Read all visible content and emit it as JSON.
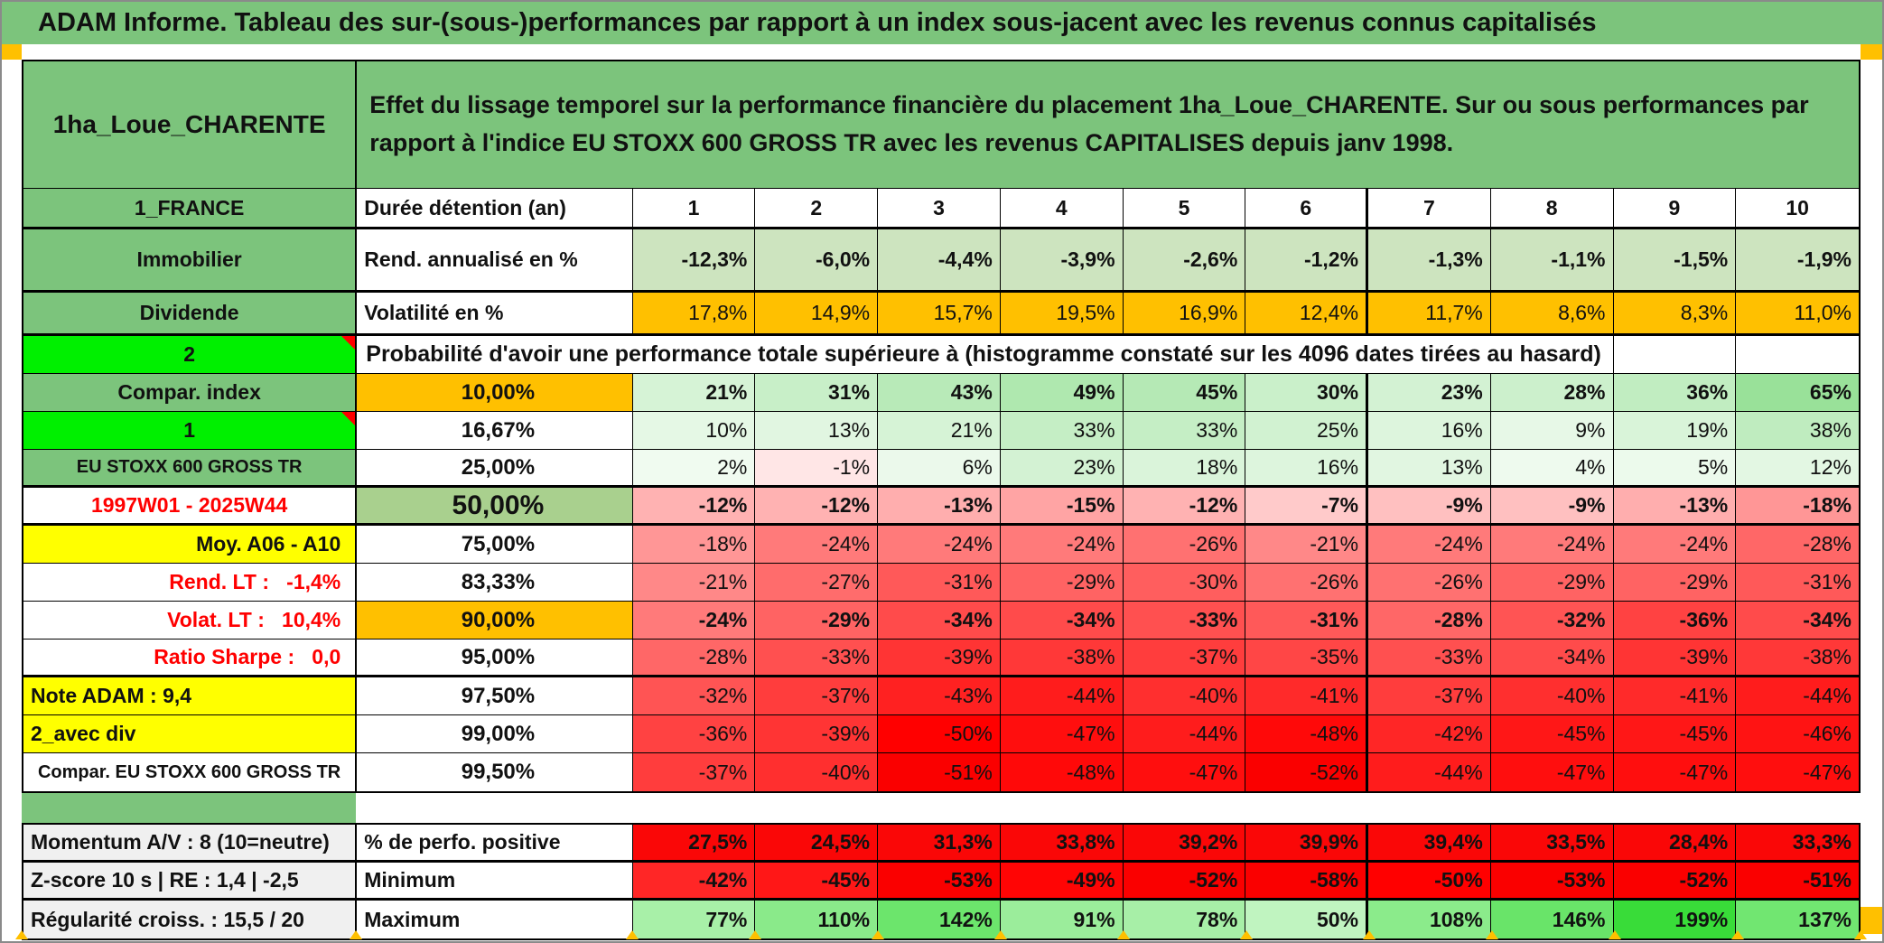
{
  "title": "ADAM Informe. Tableau des sur-(sous-)performances par rapport à un index sous-jacent avec les revenus connus capitalisés",
  "header": {
    "asset_name": "1ha_Loue_CHARENTE",
    "description": "Effet du lissage temporel sur la performance financière du placement 1ha_Loue_CHARENTE. Sur ou sous performances par rapport à l'indice EU STOXX 600 GROSS TR avec les revenus CAPITALISES depuis janv 1998."
  },
  "colors": {
    "green_header": "#7CC47C",
    "bright_green": "#00F000",
    "orange": "#FFC000",
    "yellow": "#FFFF00",
    "olive": "#A9D08E",
    "gray_label": "#F0F0F0",
    "red_text": "#FF0000"
  },
  "table": {
    "duration_header": {
      "label": "1_FRANCE",
      "metric": "Durée détention (an)",
      "values": [
        "1",
        "2",
        "3",
        "4",
        "5",
        "6",
        "7",
        "8",
        "9",
        "10"
      ]
    },
    "stat_rows": [
      {
        "label": "Immobilier",
        "metric": "Rend. annualisé en %",
        "mode": "flat-green",
        "bold": true,
        "row_class": "r-ann thickb",
        "values": [
          "-12,3%",
          "-6,0%",
          "-4,4%",
          "-3,9%",
          "-2,6%",
          "-1,2%",
          "-1,3%",
          "-1,1%",
          "-1,5%",
          "-1,9%"
        ]
      },
      {
        "label": "Dividende",
        "metric": "Volatilité en %",
        "mode": "flat-orange",
        "bold": false,
        "row_class": "r-vol thickb",
        "values": [
          "17,8%",
          "14,9%",
          "15,7%",
          "19,5%",
          "16,9%",
          "12,4%",
          "11,7%",
          "8,6%",
          "8,3%",
          "11,0%"
        ]
      }
    ],
    "probability_header": {
      "label": "2",
      "text": "Probabilité d'avoir une performance totale supérieure à (histogramme constaté sur les 4096 dates tirées au hasard)"
    },
    "probability_rows": [
      {
        "label": "Compar. index",
        "label_style": "green",
        "threshold": "10,00%",
        "threshold_style": "orange",
        "bold": true,
        "values": [
          "21%",
          "31%",
          "43%",
          "49%",
          "45%",
          "30%",
          "23%",
          "28%",
          "36%",
          "65%"
        ]
      },
      {
        "label": "1",
        "label_style": "bright",
        "corner_flag": true,
        "threshold": "16,67%",
        "threshold_style": "white",
        "bold": false,
        "values": [
          "10%",
          "13%",
          "21%",
          "33%",
          "33%",
          "25%",
          "16%",
          "9%",
          "19%",
          "38%"
        ]
      },
      {
        "label": "EU STOXX 600 GROSS TR",
        "label_style": "green",
        "label_size": "small",
        "threshold": "25,00%",
        "threshold_style": "white",
        "bold": false,
        "thick_bottom": true,
        "values": [
          "2%",
          "-1%",
          "6%",
          "23%",
          "18%",
          "16%",
          "13%",
          "4%",
          "5%",
          "12%"
        ]
      },
      {
        "label": "1997W01 - 2025W44",
        "label_style": "white-red",
        "threshold": "50,00%",
        "threshold_style": "olive",
        "threshold_size": "big",
        "bold": true,
        "thick_bottom": true,
        "values": [
          "-12%",
          "-12%",
          "-13%",
          "-15%",
          "-12%",
          "-7%",
          "-9%",
          "-9%",
          "-13%",
          "-18%"
        ]
      },
      {
        "label": "Moy. A06 - A10",
        "label_style": "yellow",
        "label_align": "right",
        "threshold": "75,00%",
        "threshold_style": "white",
        "bold": false,
        "values": [
          "-18%",
          "-24%",
          "-24%",
          "-24%",
          "-26%",
          "-21%",
          "-24%",
          "-24%",
          "-24%",
          "-28%"
        ]
      },
      {
        "label": "Rend. LT :   -1,4%",
        "label_style": "white-red",
        "label_align": "right",
        "threshold": "83,33%",
        "threshold_style": "white",
        "bold": false,
        "values": [
          "-21%",
          "-27%",
          "-31%",
          "-29%",
          "-30%",
          "-26%",
          "-26%",
          "-29%",
          "-29%",
          "-31%"
        ]
      },
      {
        "label": "Volat. LT :   10,4%",
        "label_style": "white-red",
        "label_align": "right",
        "threshold": "90,00%",
        "threshold_style": "orange",
        "bold": true,
        "values": [
          "-24%",
          "-29%",
          "-34%",
          "-34%",
          "-33%",
          "-31%",
          "-28%",
          "-32%",
          "-36%",
          "-34%"
        ]
      },
      {
        "label": "Ratio Sharpe :   0,0",
        "label_style": "white-red",
        "label_align": "right",
        "threshold": "95,00%",
        "threshold_style": "white",
        "bold": false,
        "thick_bottom": true,
        "values": [
          "-28%",
          "-33%",
          "-39%",
          "-38%",
          "-37%",
          "-35%",
          "-33%",
          "-34%",
          "-39%",
          "-38%"
        ]
      },
      {
        "label": "Note ADAM : 9,4",
        "label_style": "yellow",
        "label_align": "left",
        "threshold": "97,50%",
        "threshold_style": "white",
        "bold": false,
        "values": [
          "-32%",
          "-37%",
          "-43%",
          "-44%",
          "-40%",
          "-41%",
          "-37%",
          "-40%",
          "-41%",
          "-44%"
        ]
      },
      {
        "label": "2_avec div",
        "label_style": "yellow",
        "label_align": "left",
        "threshold": "99,00%",
        "threshold_style": "white",
        "bold": false,
        "values": [
          "-36%",
          "-39%",
          "-50%",
          "-47%",
          "-44%",
          "-48%",
          "-42%",
          "-45%",
          "-45%",
          "-46%"
        ]
      },
      {
        "label": "Compar. EU STOXX 600 GROSS TR",
        "label_style": "white",
        "label_size": "small",
        "threshold": "99,50%",
        "threshold_style": "white",
        "bold": false,
        "values": [
          "-37%",
          "-40%",
          "-51%",
          "-48%",
          "-47%",
          "-52%",
          "-44%",
          "-47%",
          "-47%",
          "-47%"
        ]
      }
    ],
    "summary_rows": [
      {
        "label": "Momentum A/V : 8 (10=neutre)",
        "metric": "% de perfo. positive",
        "mode": "flat-red",
        "bold": true,
        "values": [
          "27,5%",
          "24,5%",
          "31,3%",
          "33,8%",
          "39,2%",
          "39,9%",
          "39,4%",
          "33,5%",
          "28,4%",
          "33,3%"
        ]
      },
      {
        "label": "Z-score 10 s | RE : 1,4 | -2,5",
        "metric": "Minimum",
        "mode": "auto",
        "bold": true,
        "values": [
          "-42%",
          "-45%",
          "-53%",
          "-49%",
          "-52%",
          "-58%",
          "-50%",
          "-53%",
          "-52%",
          "-51%"
        ]
      },
      {
        "label": "Régularité croiss. : 15,5 / 20",
        "metric": "Maximum",
        "mode": "green-max",
        "bold": true,
        "values": [
          "77%",
          "110%",
          "142%",
          "91%",
          "78%",
          "50%",
          "108%",
          "146%",
          "199%",
          "137%"
        ]
      }
    ]
  }
}
